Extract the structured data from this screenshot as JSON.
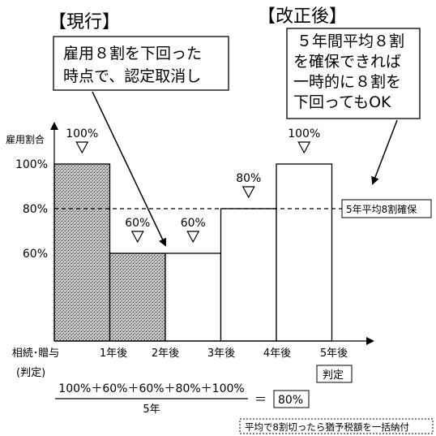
{
  "chart_data": {
    "type": "bar",
    "categories": [
      "相続・贈与",
      "1年後",
      "2年後",
      "3年後",
      "4年後"
    ],
    "values": [
      100,
      60,
      60,
      80,
      100
    ],
    "value_labels": [
      "100%",
      "60%",
      "60%",
      "80%",
      "100%"
    ],
    "shaded_bars": [
      true,
      true,
      false,
      false,
      false
    ],
    "ylabel": "雇用割合",
    "y_ticks": [
      {
        "value": 100,
        "label": "100%"
      },
      {
        "value": 80,
        "label": "80%"
      },
      {
        "value": 60,
        "label": "60%"
      }
    ],
    "reference_line": {
      "value": 80,
      "label": "5年平均8割確保"
    },
    "x_tick_labels": [
      "相続･贈与",
      "1年後",
      "2年後",
      "3年後",
      "4年後",
      "5年後"
    ],
    "x_sub_label": "(判定)",
    "judgement_label": "判定"
  },
  "headings": {
    "current": "【現行】",
    "revised": "【改正後】"
  },
  "callouts": {
    "current": [
      "雇用８割を下回った",
      "時点で、認定取消し"
    ],
    "revised": [
      "５年間平均８割",
      "を確保できれば",
      "一時的に８割を",
      "下回ってもOK"
    ]
  },
  "formula": {
    "numerator": "100%＋60%＋60%＋80%＋100%",
    "denominator": "5年",
    "equals": "＝",
    "result": "80%"
  },
  "footnote": "平均で8割切ったら猶予税額を一括納付"
}
